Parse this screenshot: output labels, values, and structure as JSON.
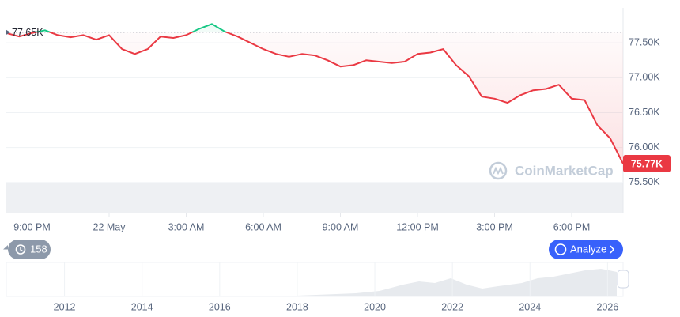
{
  "chart_data": {
    "type": "line",
    "x": [
      -1,
      -0.5,
      0,
      0.5,
      1,
      1.5,
      2,
      2.5,
      3,
      3.5,
      4,
      4.5,
      5,
      5.5,
      6,
      6.5,
      7,
      7.5,
      8,
      8.5,
      9,
      9.5,
      10,
      10.5,
      11,
      11.5,
      12,
      12.5,
      13,
      13.5,
      14,
      14.5,
      15,
      15.5,
      16,
      16.5,
      17,
      17.5,
      18,
      18.5,
      19,
      19.5,
      20,
      20.5,
      21,
      21.5,
      22,
      22.5,
      23
    ],
    "series": [
      {
        "color": "#ea3943",
        "above_color": "#16c784",
        "values": [
          77640,
          77590,
          77640,
          77680,
          77610,
          77580,
          77610,
          77545,
          77610,
          77410,
          77340,
          77410,
          77590,
          77570,
          77610,
          77700,
          77770,
          77660,
          77590,
          77500,
          77410,
          77340,
          77300,
          77340,
          77320,
          77250,
          77160,
          77180,
          77250,
          77230,
          77210,
          77230,
          77340,
          77360,
          77410,
          77180,
          77020,
          76730,
          76700,
          76640,
          76750,
          76820,
          76840,
          76900,
          76700,
          76680,
          76320,
          76130,
          75770
        ]
      }
    ],
    "xlim": [
      -1,
      23
    ],
    "xticks": [
      {
        "value": 0,
        "label": "9:00 PM"
      },
      {
        "value": 3,
        "label": "22 May"
      },
      {
        "value": 6,
        "label": "3:00 AM"
      },
      {
        "value": 9,
        "label": "6:00 AM"
      },
      {
        "value": 12,
        "label": "9:00 AM"
      },
      {
        "value": 15,
        "label": "12:00 PM"
      },
      {
        "value": 18,
        "label": "3:00 PM"
      },
      {
        "value": 21,
        "label": "6:00 PM"
      }
    ],
    "ylim": [
      75000,
      78000
    ],
    "yticks": [
      {
        "value": 75500,
        "label": "75.50K"
      },
      {
        "value": 76000,
        "label": "76.00K"
      },
      {
        "value": 76500,
        "label": "76.50K"
      },
      {
        "value": 77000,
        "label": "77.00K"
      },
      {
        "value": 77500,
        "label": "77.50K"
      }
    ],
    "grid": true,
    "reference": {
      "value": 77650,
      "label": "77.65K"
    },
    "last_price": {
      "value": 75770,
      "label": "75.77K"
    },
    "watermark": "CoinMarketCap"
  },
  "controls": {
    "history_count": 158,
    "analyze": "Analyze"
  },
  "navigator": {
    "xlim": [
      2010.5,
      2026.4
    ],
    "xticks": [
      2012,
      2014,
      2016,
      2018,
      2020,
      2022,
      2024,
      2026
    ]
  }
}
